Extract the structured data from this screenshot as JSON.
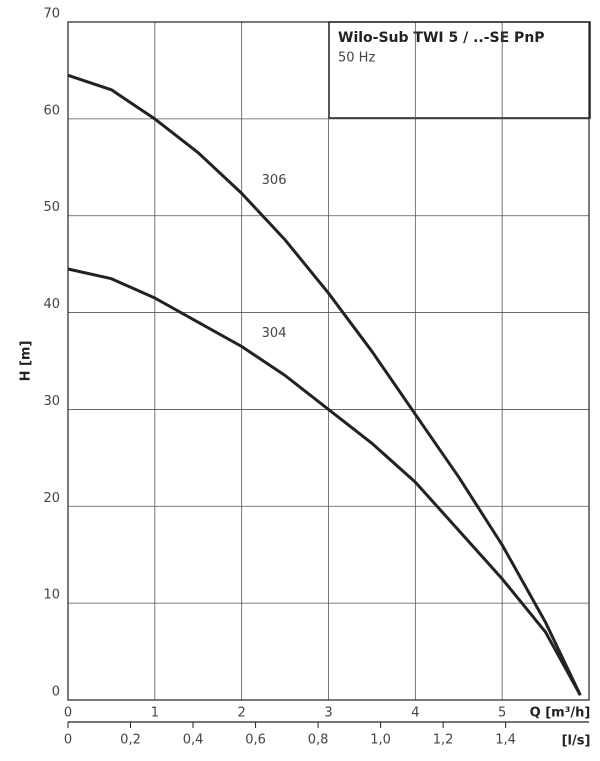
{
  "chart_data": {
    "type": "line",
    "title": "Wilo-Sub TWI 5 / ..-SE PnP",
    "subtitle": "50 Hz",
    "x_label": "Q [m³/h]",
    "x2_label": "[l/s]",
    "y_label": "H [m]",
    "x": [
      0,
      0.5,
      1,
      1.5,
      2,
      2.5,
      3,
      3.5,
      4,
      4.5,
      5,
      5.5,
      5.9
    ],
    "series": [
      {
        "name": "306",
        "color": "#222222",
        "values": [
          64.5,
          63,
          60,
          56.5,
          52.3,
          47.5,
          42,
          36,
          29.5,
          23,
          16,
          8,
          0.5
        ]
      },
      {
        "name": "304",
        "color": "#222222",
        "values": [
          44.5,
          43.5,
          41.5,
          39,
          36.5,
          33.5,
          30,
          26.5,
          22.5,
          17.5,
          12.5,
          7,
          0.5
        ]
      }
    ],
    "xlim": [
      0,
      6
    ],
    "xticks": [
      0,
      1,
      2,
      3,
      4,
      5
    ],
    "x2lim": [
      0,
      1.6667
    ],
    "x2ticks": [
      0,
      {
        "value": 0.2,
        "label": "0,2"
      },
      {
        "value": 0.4,
        "label": "0,4"
      },
      {
        "value": 0.6,
        "label": "0,6"
      },
      {
        "value": 0.8,
        "label": "0,8"
      },
      {
        "value": 1.0,
        "label": "1,0"
      },
      {
        "value": 1.2,
        "label": "1,2"
      },
      {
        "value": 1.4,
        "label": "1,4"
      }
    ],
    "ylim": [
      0,
      70
    ],
    "yticks": [
      0,
      10,
      20,
      30,
      40,
      50,
      60,
      70
    ],
    "grid": true
  }
}
